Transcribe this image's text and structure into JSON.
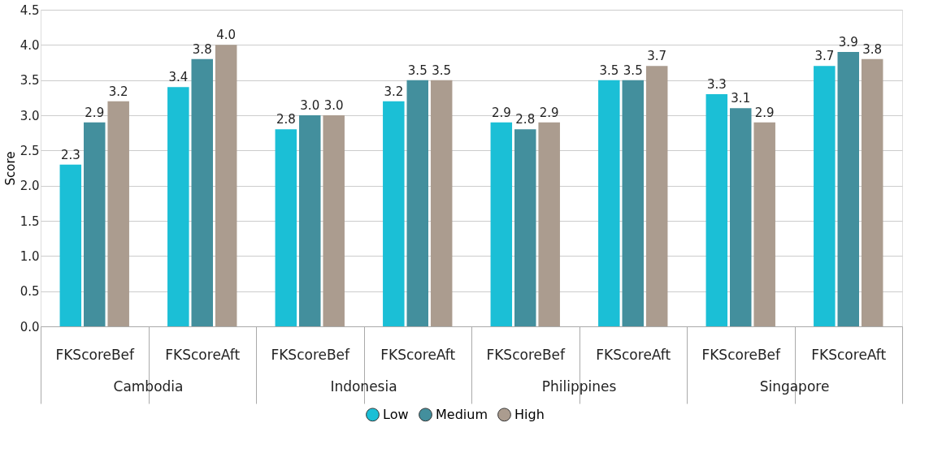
{
  "chart_data": {
    "type": "bar",
    "ylabel": "Score",
    "categories": [
      "FKScoreBef",
      "FKScoreAft",
      "FKScoreBef",
      "FKScoreAft",
      "FKScoreBef",
      "FKScoreAft",
      "FKScoreBef",
      "FKScoreAft"
    ],
    "annotations": [
      "Cambodia",
      "Indonesia",
      "Philippines",
      "Singapore"
    ],
    "series": [
      {
        "name": "Low",
        "color": "#1bbfd6",
        "values": [
          2.3,
          3.4,
          2.8,
          3.2,
          2.9,
          3.5,
          3.3,
          3.7
        ],
        "value_labels": [
          "2.3",
          "3.4",
          "2.8",
          "3.2",
          "2.9",
          "3.5",
          "3.3",
          "3.7"
        ]
      },
      {
        "name": "Medium",
        "color": "#438f9d",
        "values": [
          2.9,
          3.8,
          3.0,
          3.5,
          2.8,
          3.5,
          3.1,
          3.9
        ],
        "value_labels": [
          "2.9",
          "3.8",
          "3.0",
          "3.5",
          "2.8",
          "3.5",
          "3.1",
          "3.9"
        ]
      },
      {
        "name": "High",
        "color": "#ab9c8f",
        "values": [
          3.2,
          4.0,
          3.0,
          3.5,
          2.9,
          3.7,
          2.9,
          3.8
        ],
        "value_labels": [
          "3.2",
          "4.0",
          "3.0",
          "3.5",
          "2.9",
          "3.7",
          "2.9",
          "3.8"
        ]
      }
    ],
    "ylim": [
      0,
      4.5
    ],
    "yticks": [
      {
        "value": 0,
        "label": "0.0"
      },
      {
        "value": 0.5,
        "label": "0.5"
      },
      {
        "value": 1,
        "label": "1.0"
      },
      {
        "value": 1.5,
        "label": "1.5"
      },
      {
        "value": 2,
        "label": "2.0"
      },
      {
        "value": 2.5,
        "label": "2.5"
      },
      {
        "value": 3,
        "label": "3.0"
      },
      {
        "value": 3.5,
        "label": "3.5"
      },
      {
        "value": 4,
        "label": "4.0"
      },
      {
        "value": 4.5,
        "label": "4.5"
      }
    ],
    "grid": "y",
    "legend": "bottom"
  }
}
